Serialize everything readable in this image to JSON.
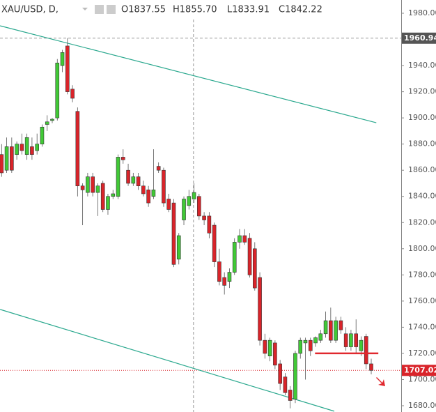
{
  "chart_data": {
    "type": "candlestick",
    "header": {
      "symbol": "XAU/USD, D,",
      "open": "O1837.55",
      "high": "H1855.70",
      "low": "L1833.91",
      "close": "C1842.22"
    },
    "up_color": "#41c936",
    "down_color": "#d9242a",
    "trendline_color": "#2aa88e",
    "level_color": "#e0282e",
    "open": [
      1872,
      1860,
      1878,
      1872,
      1880,
      1872,
      1878,
      1875,
      1880,
      1895,
      1898,
      1900,
      1940,
      1955,
      1922,
      1905,
      1848,
      1843,
      1855,
      1843,
      1850,
      1830,
      1840,
      1840,
      1870,
      1860,
      1850,
      1855,
      1848,
      1845,
      1840,
      1863,
      1860,
      1838,
      1835,
      1792,
      1822,
      1833,
      1838,
      1840,
      1825,
      1825,
      1818,
      1790,
      1778,
      1775,
      1782,
      1805,
      1810,
      1808,
      1800,
      1778,
      1730,
      1718,
      1728,
      1712,
      1702,
      1692,
      1685,
      1720,
      1728,
      1730,
      1728,
      1730,
      1735,
      1745,
      1730,
      1745,
      1735,
      1725,
      1735,
      1722,
      1733,
      1712
    ],
    "high": [
      1880,
      1885,
      1885,
      1882,
      1888,
      1888,
      1885,
      1888,
      1895,
      1902,
      1900,
      1945,
      1952,
      1961,
      1925,
      1908,
      1850,
      1858,
      1858,
      1850,
      1852,
      1842,
      1845,
      1872,
      1876,
      1865,
      1858,
      1858,
      1852,
      1848,
      1876,
      1866,
      1862,
      1842,
      1838,
      1812,
      1840,
      1845,
      1850,
      1842,
      1828,
      1828,
      1820,
      1800,
      1782,
      1785,
      1808,
      1815,
      1815,
      1812,
      1805,
      1782,
      1735,
      1732,
      1730,
      1715,
      1705,
      1695,
      1722,
      1732,
      1732,
      1732,
      1733,
      1738,
      1752,
      1755,
      1748,
      1748,
      1740,
      1738,
      1746,
      1733,
      1735,
      1716
    ],
    "low": [
      1855,
      1858,
      1858,
      1868,
      1872,
      1868,
      1868,
      1872,
      1878,
      1890,
      1896,
      1898,
      1935,
      1918,
      1912,
      1840,
      1818,
      1840,
      1840,
      1825,
      1828,
      1826,
      1838,
      1838,
      1865,
      1848,
      1848,
      1845,
      1840,
      1832,
      1838,
      1858,
      1832,
      1828,
      1786,
      1788,
      1818,
      1830,
      1835,
      1822,
      1818,
      1808,
      1786,
      1772,
      1765,
      1770,
      1780,
      1800,
      1803,
      1778,
      1768,
      1726,
      1716,
      1714,
      1708,
      1692,
      1688,
      1678,
      1682,
      1716,
      1700,
      1718,
      1725,
      1728,
      1732,
      1728,
      1728,
      1735,
      1722,
      1722,
      1720,
      1718,
      1708,
      1704
    ],
    "close": [
      1858,
      1878,
      1860,
      1880,
      1875,
      1885,
      1872,
      1880,
      1893,
      1897,
      1899,
      1942,
      1950,
      1920,
      1915,
      1848,
      1845,
      1855,
      1843,
      1848,
      1830,
      1840,
      1842,
      1870,
      1868,
      1850,
      1855,
      1848,
      1842,
      1835,
      1845,
      1860,
      1835,
      1830,
      1788,
      1810,
      1838,
      1840,
      1843,
      1825,
      1822,
      1812,
      1790,
      1775,
      1772,
      1782,
      1805,
      1810,
      1805,
      1780,
      1770,
      1730,
      1720,
      1730,
      1711,
      1697,
      1690,
      1684,
      1720,
      1730,
      1730,
      1722,
      1732,
      1735,
      1745,
      1730,
      1745,
      1738,
      1725,
      1735,
      1725,
      1730,
      1712,
      1707
    ],
    "trendlines": [
      {
        "start": [
          -0.3,
          1970.4
        ],
        "end": [
          74,
          1896.3
        ]
      },
      {
        "start": [
          -0.3,
          1753.6
        ],
        "end": [
          65.7,
          1675.8
        ]
      }
    ],
    "level": {
      "start": [
        61.9,
        1720
      ],
      "end": [
        74.4,
        1720
      ]
    },
    "crosshair": {
      "index": 37.9,
      "price": 1960.94,
      "label": "1960.94"
    },
    "last_price": {
      "price": 1707.02,
      "label": "1707.02"
    },
    "ylim": [
      1680,
      1980
    ],
    "yticks": [
      {
        "value": 1680,
        "label": "1680.00"
      },
      {
        "value": 1700,
        "label": "1700.00"
      },
      {
        "value": 1720,
        "label": "1720.00"
      },
      {
        "value": 1740,
        "label": "1740.00"
      },
      {
        "value": 1760,
        "label": "1760.00"
      },
      {
        "value": 1780,
        "label": "1780.00"
      },
      {
        "value": 1800,
        "label": "1800.00"
      },
      {
        "value": 1820,
        "label": "1820.00"
      },
      {
        "value": 1840,
        "label": "1840.00"
      },
      {
        "value": 1860,
        "label": "1860.00"
      },
      {
        "value": 1880,
        "label": "1880.00"
      },
      {
        "value": 1900,
        "label": "1900.00"
      },
      {
        "value": 1920,
        "label": "1920.00"
      },
      {
        "value": 1940,
        "label": "1940.00"
      },
      {
        "value": 1960,
        "label": "1960.00"
      },
      {
        "value": 1980,
        "label": "1980.00"
      }
    ]
  }
}
